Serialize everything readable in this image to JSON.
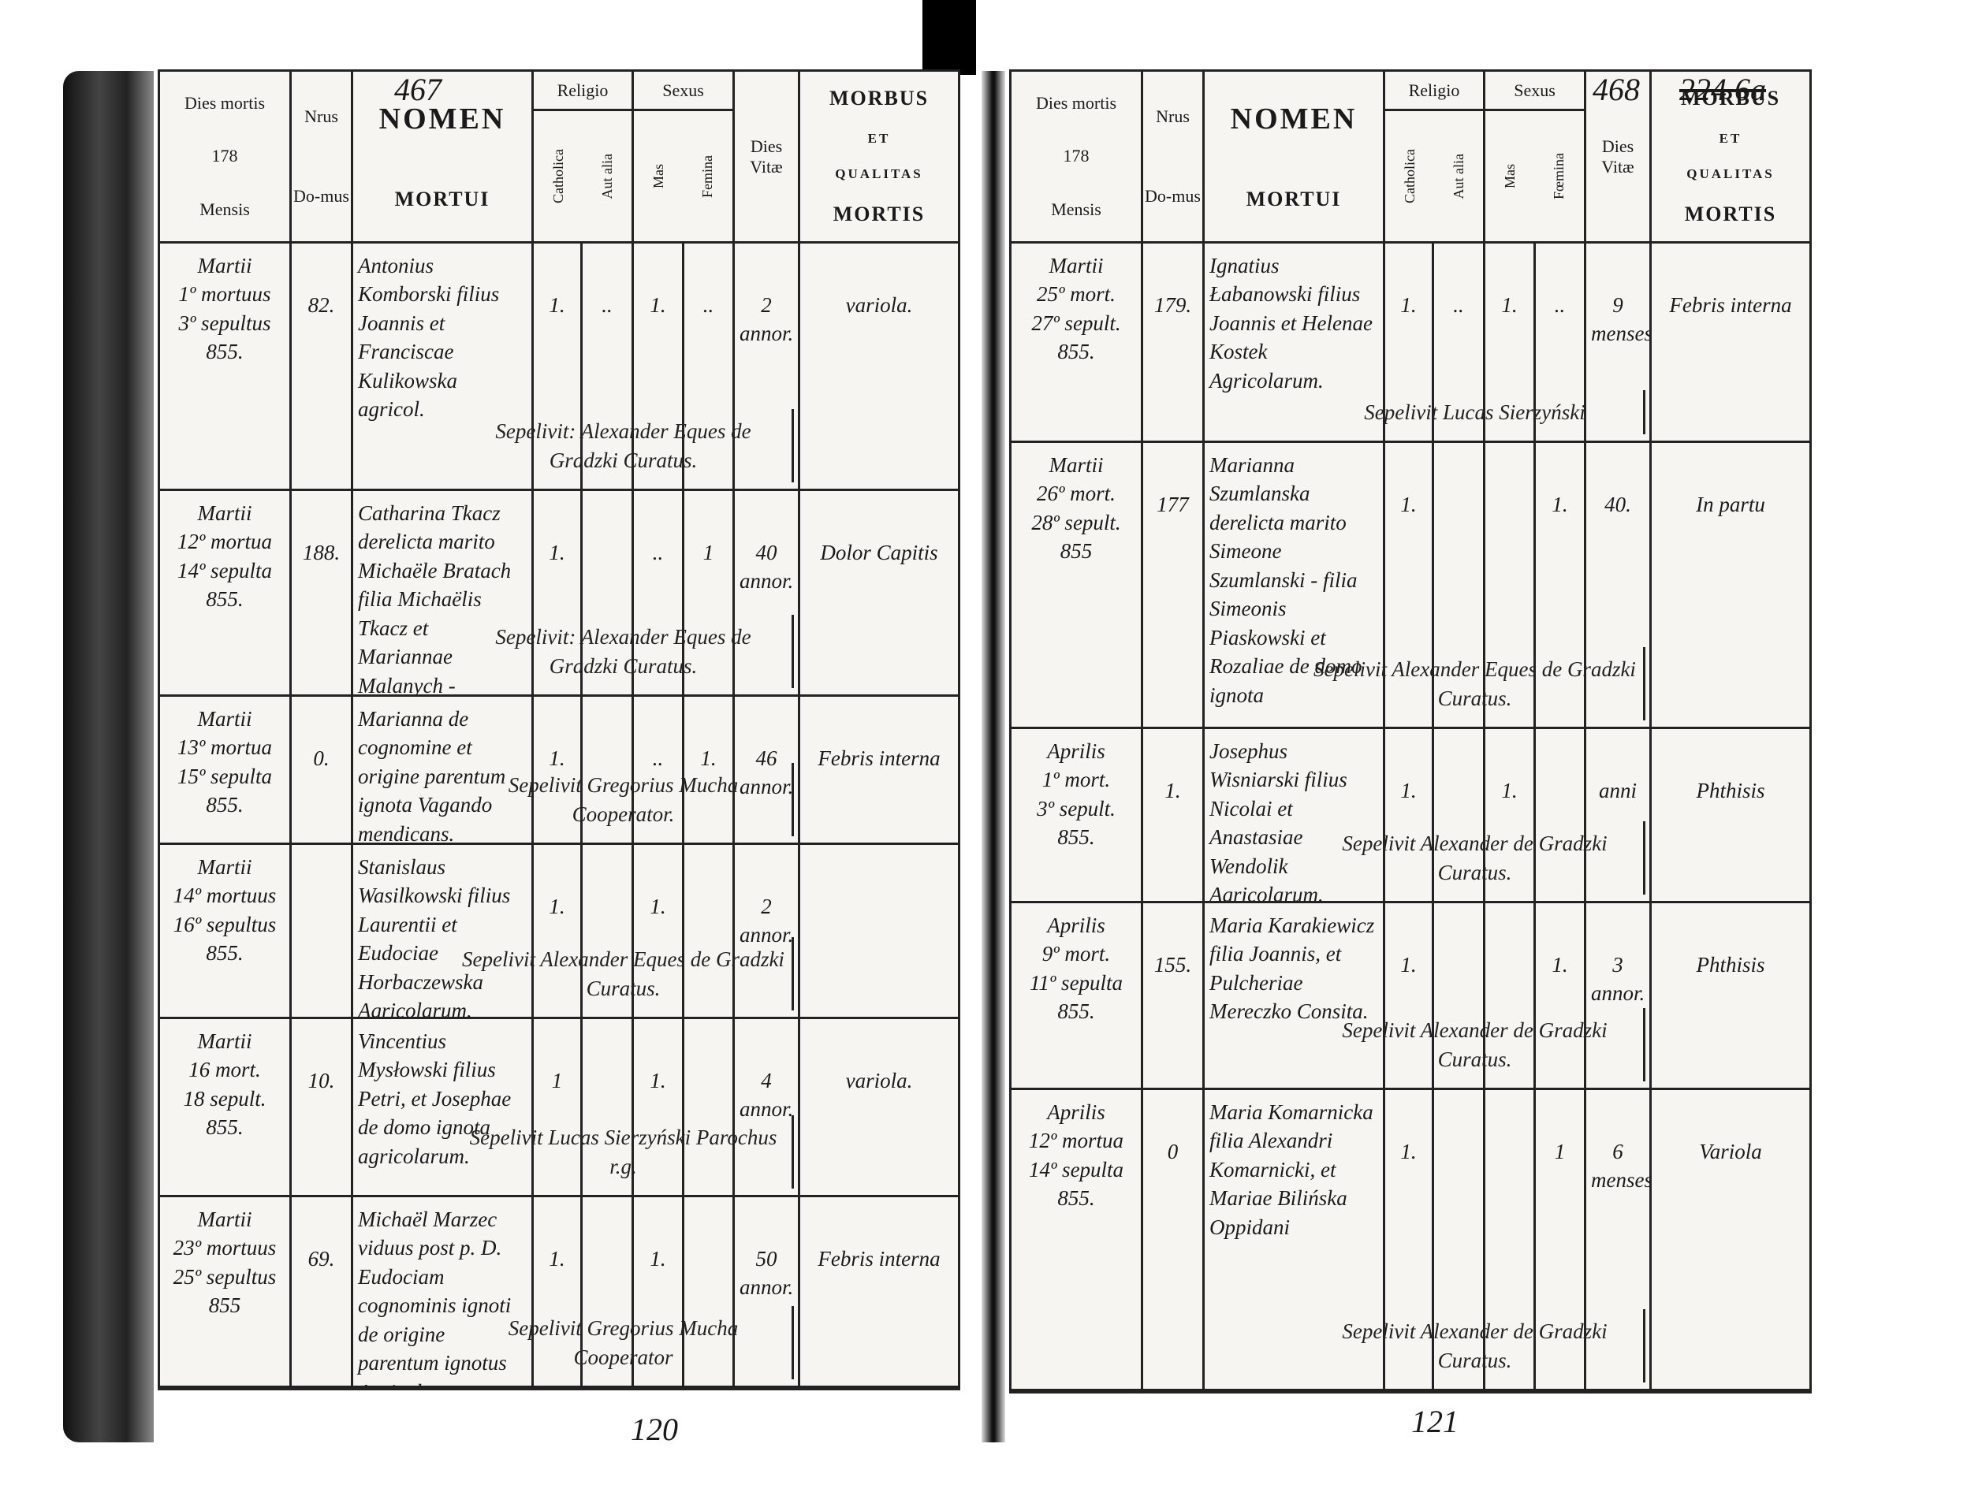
{
  "pages": [
    {
      "page_number_top": "467",
      "page_number_bottom": "120",
      "header": {
        "dies_mortis": "Dies mortis",
        "year": "178",
        "mensis": "Mensis",
        "nrus": "Nrus",
        "domus": "Do-mus",
        "nomen": "NOMEN",
        "mortui": "MORTUI",
        "religio": "Religio",
        "catholica": "Catholica",
        "aut_alia": "Aut alia",
        "sexus": "Sexus",
        "mas": "Mas",
        "femina": "Femina",
        "dies_vitae": "Dies Vitæ",
        "morbus": "MORBUS",
        "et": "ET",
        "qualitas": "QUALITAS",
        "mortis": "MORTIS"
      },
      "rows": [
        {
          "date": "Martii\n1º mortuus\n3º sepultus\n855.",
          "house": "82.",
          "name": "Antonius Komborski filius Joannis et Franciscae Kulikowska agricol.",
          "catholica": "1.",
          "aut_alia": "..",
          "mas": "1.",
          "femina": "..",
          "age": "2 annor.",
          "cause": "variola.",
          "note": "Sepelivit: Alexander Eques de Gradzki Curatus."
        },
        {
          "date": "Martii\n12º mortua\n14º sepulta\n855.",
          "house": "188.",
          "name": "Catharina Tkacz derelicta marito Michaële Bratach filia Michaëlis Tkacz et Mariannae Malanych - Agricolarum.",
          "catholica": "1.",
          "mas": "..",
          "femina": "1",
          "age": "40 annor.",
          "cause": "Dolor Capitis",
          "note": "Sepelivit: Alexander Eques de Gradzki Curatus."
        },
        {
          "date": "Martii\n13º mortua\n15º sepulta\n855.",
          "house": "0.",
          "name": "Marianna de cognomine et origine parentum ignota Vagando mendicans.",
          "catholica": "1.",
          "mas": "..",
          "femina": "1.",
          "age": "46 annor.",
          "cause": "Febris interna",
          "note": "Sepelivit Gregorius Mucha Cooperator."
        },
        {
          "date": "Martii\n14º mortuus\n16º sepultus\n855.",
          "name": "Stanislaus Wasilkowski filius Laurentii et Eudociae Horbaczewska Agricolarum.",
          "catholica": "1.",
          "mas": "1.",
          "age": "2 annor.",
          "note": "Sepelivit Alexander Eques de Gradzki Curatus."
        },
        {
          "date": "Martii\n16 mort.\n18 sepult.\n855.",
          "house": "10.",
          "name": "Vincentius Mysłowski filius Petri, et Josephae de domo ignota agricolarum.",
          "catholica": "1",
          "mas": "1.",
          "age": "4 annor.",
          "cause": "variola.",
          "note": "Sepelivit Lucas Sierzyński Parochus r.g."
        },
        {
          "date": "Martii\n23º mortuus\n25º sepultus\n855",
          "house": "69.",
          "name": "Michaël Marzec viduus post p. D. Eudociam cognominis ignoti de origine parentum ignotus Agricola.",
          "catholica": "1.",
          "mas": "1.",
          "age": "50 annor.",
          "cause": "Febris interna",
          "note": "Sepelivit Gregorius Mucha Cooperator"
        }
      ]
    },
    {
      "page_number_top": "468",
      "page_number_crossed": "224 6a",
      "page_number_bottom": "121",
      "header": {
        "dies_mortis": "Dies mortis",
        "year": "178",
        "mensis": "Mensis",
        "nrus": "Nrus",
        "domus": "Do-mus",
        "nomen": "NOMEN",
        "mortui": "MORTUI",
        "religio": "Religio",
        "catholica": "Catholica",
        "aut_alia": "Aut alia",
        "sexus": "Sexus",
        "mas": "Mas",
        "femina": "Fœmina",
        "dies_vitae": "Dies Vitæ",
        "morbus": "MORBUS",
        "et": "ET",
        "qualitas": "QUALITAS",
        "mortis": "MORTIS"
      },
      "rows": [
        {
          "date": "Martii\n25º mort.\n27º sepult.\n855.",
          "house": "179.",
          "name": "Ignatius Łabanowski filius Joannis et Helenae Kostek Agricolarum.",
          "catholica": "1.",
          "aut_alia": "..",
          "mas": "1.",
          "femina": "..",
          "age": "9 menses",
          "cause": "Febris interna",
          "note": "Sepelivit Lucas Sierzyński"
        },
        {
          "date": "Martii\n26º mort.\n28º sepult.\n855",
          "house": "177",
          "name": "Marianna Szumlanska derelicta marito Simeone Szumlanski - filia Simeonis Piaskowski et Rozaliae de domo ignota",
          "catholica": "1.",
          "femina": "1.",
          "age": "40.",
          "cause": "In partu",
          "note": "Sepelivit Alexander Eques de Gradzki Curatus."
        },
        {
          "date": "Aprilis\n1º mort.\n3º sepult.\n855.",
          "house": "1.",
          "name": "Josephus Wisniarski filius Nicolai et Anastasiae Wendolik Agricolarum.",
          "catholica": "1.",
          "mas": "1.",
          "age": "anni",
          "cause": "Phthisis",
          "note": "Sepelivit Alexander de Gradzki Curatus."
        },
        {
          "date": "Aprilis\n9º mort.\n11º sepulta\n855.",
          "house": "155.",
          "name": "Maria Karakiewicz filia Joannis, et Pulcheriae Mereczko Consita.",
          "catholica": "1.",
          "femina": "1.",
          "age": "3 annor.",
          "cause": "Phthisis",
          "note": "Sepelivit Alexander de Gradzki Curatus."
        },
        {
          "date": "Aprilis\n12º mortua\n14º sepulta\n855.",
          "house": "0",
          "name": "Maria Komarnicka filia Alexandri Komarnicki, et Mariae Bilińska Oppidani",
          "catholica": "1.",
          "femina": "1",
          "age": "6 menses",
          "cause": "Variola",
          "note": "Sepelivit Alexander de Gradzki Curatus."
        }
      ]
    }
  ]
}
